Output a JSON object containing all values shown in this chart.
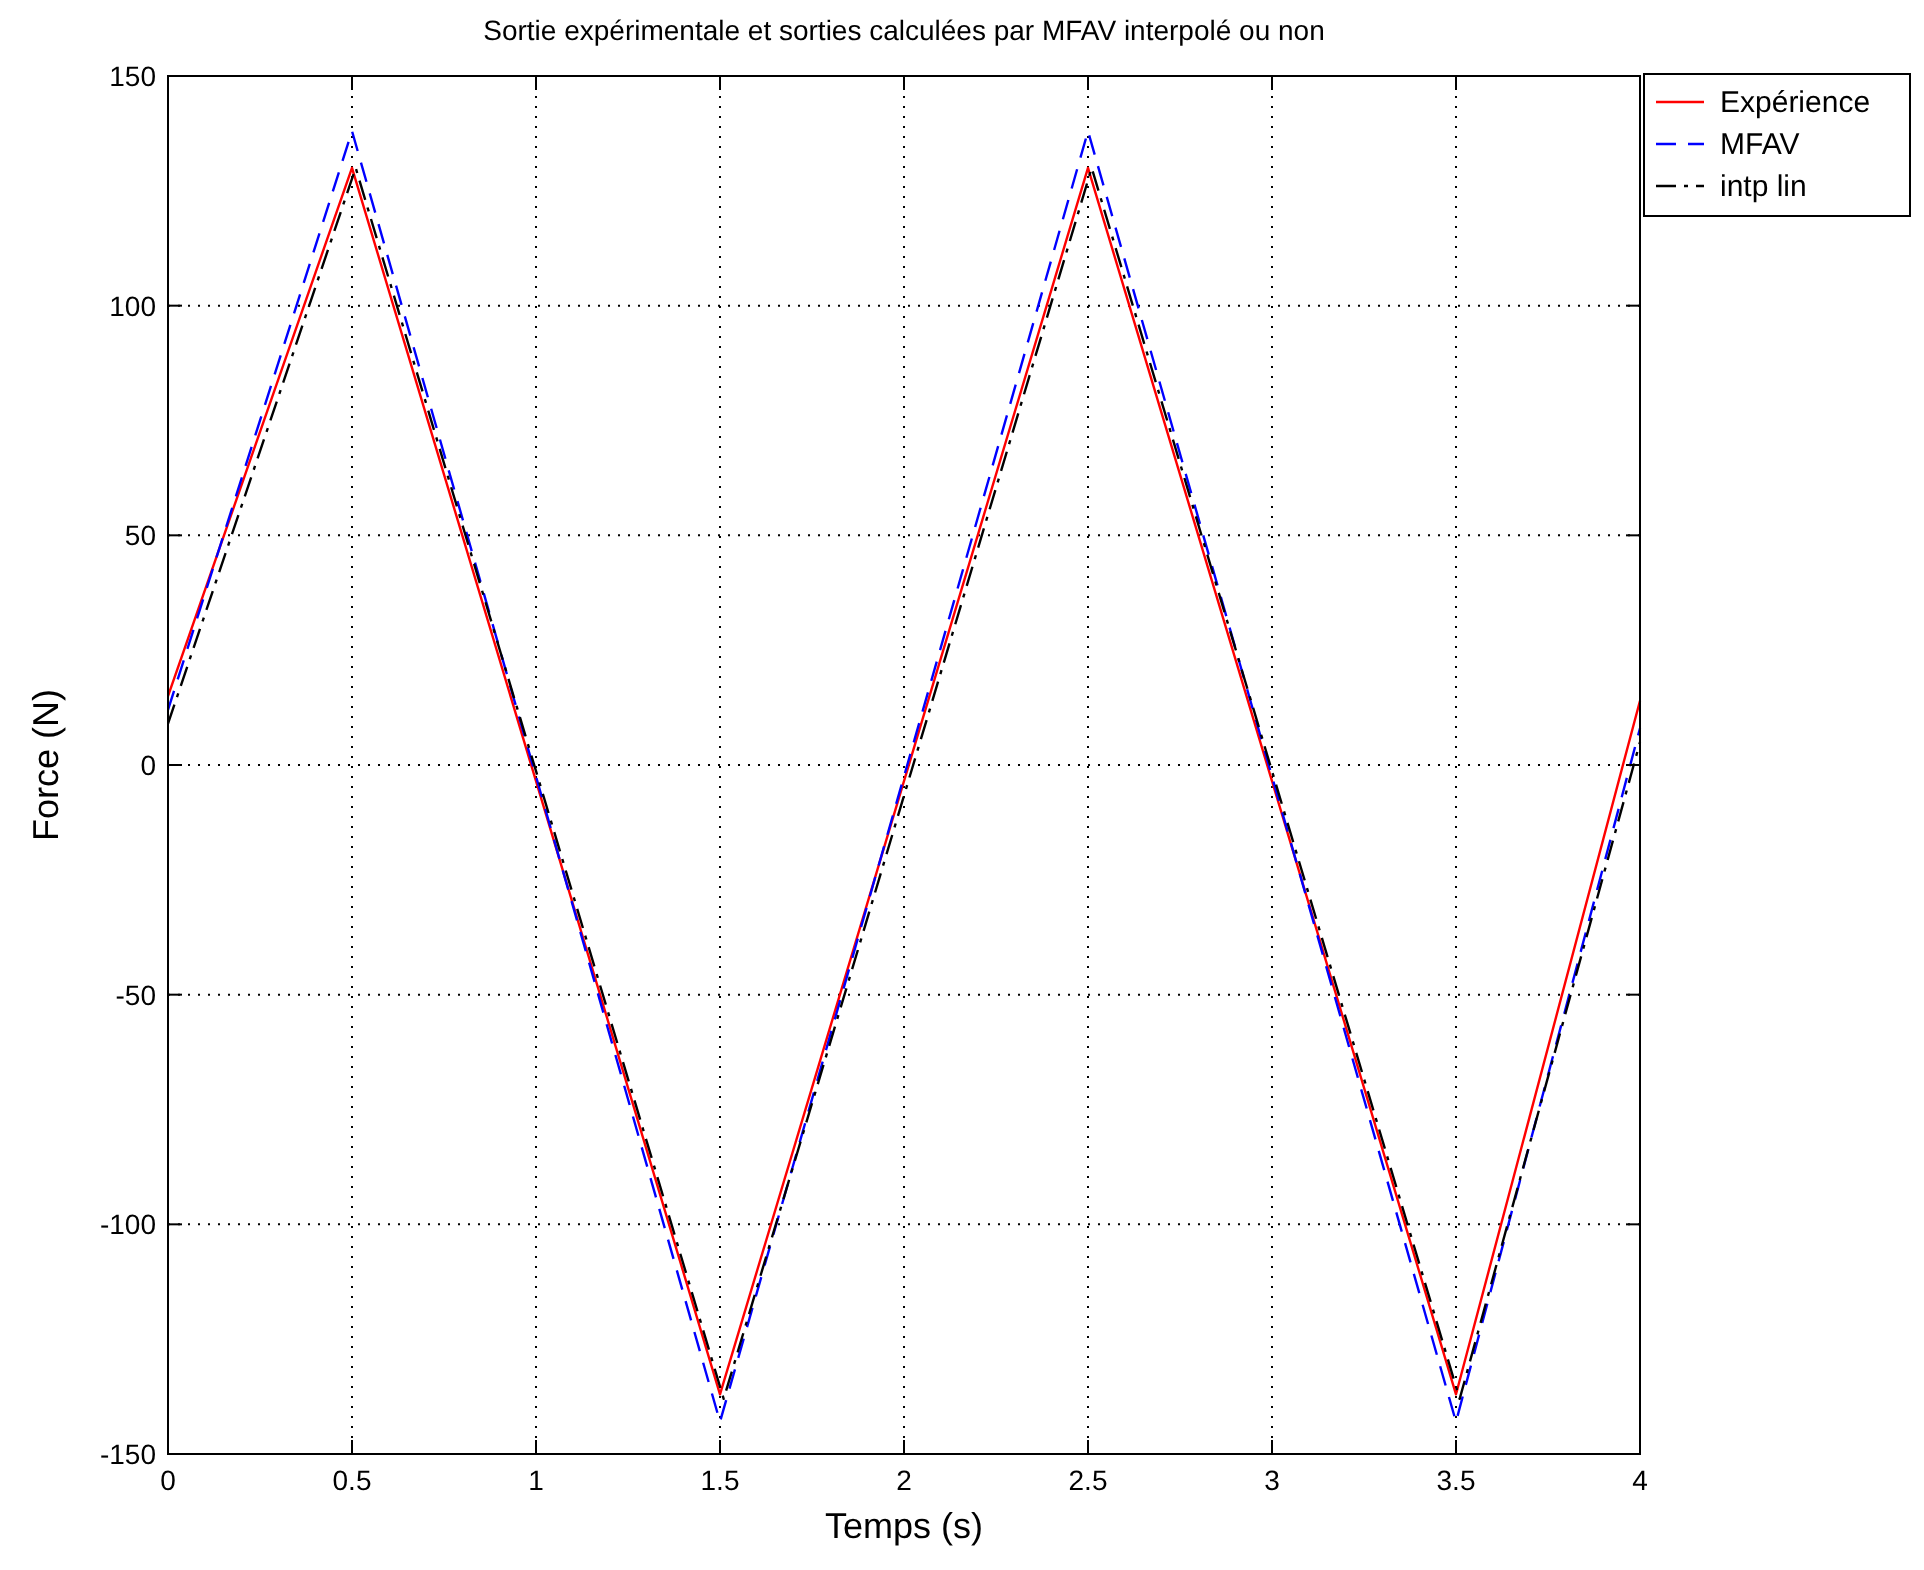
{
  "chart_data": {
    "type": "line",
    "title": "Sortie expérimentale et sorties calculées par MFAV interpolé ou non",
    "xlabel": "Temps (s)",
    "ylabel": "Force (N)",
    "xlim": [
      0,
      4
    ],
    "ylim": [
      -150,
      150
    ],
    "xticks": [
      0,
      0.5,
      1,
      1.5,
      2,
      2.5,
      3,
      3.5,
      4
    ],
    "yticks": [
      -150,
      -100,
      -50,
      0,
      50,
      100,
      150
    ],
    "grid": true,
    "legend": "top right",
    "series": [
      {
        "name": "Expérience",
        "color": "#ff0000",
        "line_style": "solid",
        "x": [
          0,
          0.5,
          1.5,
          2.5,
          3.5,
          4
        ],
        "values": [
          15,
          130,
          -137,
          130,
          -137,
          14
        ]
      },
      {
        "name": "MFAV",
        "color": "#0000ff",
        "line_style": "dashed",
        "x": [
          0,
          0.5,
          1.5,
          2.5,
          3.5,
          4
        ],
        "values": [
          12,
          138,
          -143,
          138,
          -143,
          8
        ]
      },
      {
        "name": "intp lin",
        "color": "#000000",
        "line_style": "dashdot",
        "x": [
          0,
          0.51,
          1.51,
          2.51,
          3.51,
          4
        ],
        "values": [
          9,
          130,
          -138,
          130,
          -138,
          5
        ]
      }
    ]
  }
}
